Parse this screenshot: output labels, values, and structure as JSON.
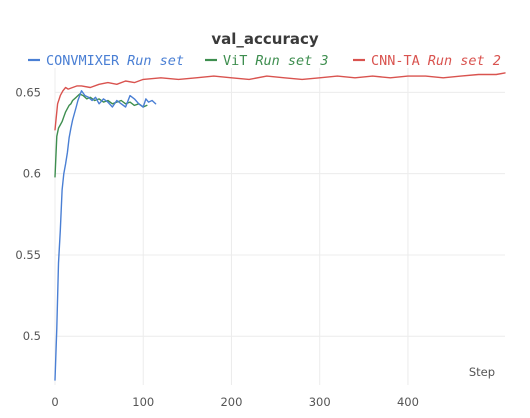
{
  "chart_data": {
    "type": "line",
    "title": "val_accuracy",
    "xlabel": "Step",
    "ylabel": "",
    "xlim": [
      0,
      510
    ],
    "ylim": [
      0.47,
      0.665
    ],
    "xticks": [
      0,
      100,
      200,
      300,
      400
    ],
    "xtick_labels": [
      "0",
      "100",
      "200",
      "300",
      "400"
    ],
    "yticks": [
      0.5,
      0.55,
      0.6,
      0.65
    ],
    "ytick_labels": [
      "0.5",
      "0.55",
      "0.6",
      "0.65"
    ],
    "grid": true,
    "legend_position": "top",
    "series": [
      {
        "name": "CONVMIXER",
        "run_label": "Run set",
        "color": "#4a7fd4",
        "x": [
          0,
          2,
          4,
          6,
          8,
          10,
          12,
          14,
          16,
          18,
          20,
          22,
          24,
          26,
          28,
          30,
          34,
          38,
          42,
          46,
          50,
          55,
          60,
          65,
          70,
          75,
          80,
          85,
          90,
          95,
          100,
          103,
          106,
          110,
          114
        ],
        "y": [
          0.473,
          0.505,
          0.545,
          0.565,
          0.59,
          0.6,
          0.606,
          0.613,
          0.622,
          0.628,
          0.633,
          0.637,
          0.641,
          0.645,
          0.648,
          0.651,
          0.648,
          0.647,
          0.645,
          0.647,
          0.643,
          0.646,
          0.644,
          0.641,
          0.645,
          0.643,
          0.641,
          0.648,
          0.646,
          0.643,
          0.641,
          0.646,
          0.644,
          0.645,
          0.643
        ]
      },
      {
        "name": "ViT",
        "run_label": "Run set 3",
        "color": "#3e8e4f",
        "x": [
          0,
          2,
          4,
          6,
          8,
          10,
          12,
          14,
          16,
          18,
          20,
          24,
          28,
          32,
          36,
          40,
          45,
          50,
          55,
          60,
          65,
          70,
          75,
          80,
          85,
          90,
          95,
          100,
          104
        ],
        "y": [
          0.598,
          0.623,
          0.628,
          0.63,
          0.632,
          0.635,
          0.638,
          0.64,
          0.642,
          0.643,
          0.645,
          0.647,
          0.649,
          0.648,
          0.646,
          0.647,
          0.645,
          0.646,
          0.644,
          0.645,
          0.643,
          0.644,
          0.645,
          0.643,
          0.644,
          0.642,
          0.643,
          0.641,
          0.642
        ]
      },
      {
        "name": "CNN-TA",
        "run_label": "Run set 2",
        "color": "#d9534f",
        "x": [
          0,
          3,
          6,
          9,
          12,
          15,
          20,
          25,
          30,
          40,
          50,
          60,
          70,
          80,
          90,
          100,
          120,
          140,
          160,
          180,
          200,
          220,
          240,
          260,
          280,
          300,
          320,
          340,
          360,
          380,
          400,
          420,
          440,
          460,
          480,
          500,
          510
        ],
        "y": [
          0.627,
          0.643,
          0.648,
          0.651,
          0.653,
          0.652,
          0.653,
          0.654,
          0.654,
          0.653,
          0.655,
          0.656,
          0.655,
          0.657,
          0.656,
          0.658,
          0.659,
          0.658,
          0.659,
          0.66,
          0.659,
          0.658,
          0.66,
          0.659,
          0.658,
          0.659,
          0.66,
          0.659,
          0.66,
          0.659,
          0.66,
          0.66,
          0.659,
          0.66,
          0.661,
          0.661,
          0.662
        ]
      }
    ]
  }
}
